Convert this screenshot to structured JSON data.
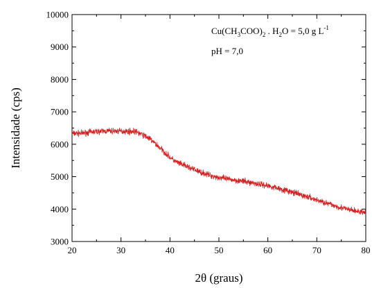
{
  "chart_data": {
    "type": "line",
    "xlabel": "2θ (graus)",
    "ylabel": "Intensidade (cps)",
    "xlim": [
      20,
      80
    ],
    "ylim": [
      3000,
      10000
    ],
    "x_ticks": [
      20,
      30,
      40,
      50,
      60,
      70,
      80
    ],
    "y_ticks": [
      3000,
      4000,
      5000,
      6000,
      7000,
      8000,
      9000,
      10000
    ],
    "grid": false,
    "legend": "none",
    "annotation": {
      "formula_parts": [
        "Cu(CH",
        "3",
        "COO)",
        "2",
        " . H",
        "2",
        "O = 5,0 g L",
        "-1"
      ],
      "ph": "pH = 7,0"
    },
    "series": [
      {
        "color": "#d81e1e",
        "noise_amplitude": 90,
        "x": [
          20,
          22,
          24,
          26,
          28,
          30,
          32,
          33,
          34,
          35,
          36,
          37,
          38,
          39,
          40,
          41,
          42,
          44,
          46,
          48,
          50,
          52,
          54,
          56,
          58,
          60,
          62,
          64,
          66,
          68,
          70,
          72,
          74,
          76,
          78,
          80
        ],
        "values": [
          6330,
          6340,
          6380,
          6400,
          6410,
          6400,
          6400,
          6390,
          6320,
          6250,
          6150,
          6020,
          5880,
          5740,
          5600,
          5480,
          5400,
          5280,
          5150,
          5050,
          4970,
          4920,
          4880,
          4830,
          4780,
          4720,
          4650,
          4560,
          4470,
          4380,
          4280,
          4180,
          4090,
          4000,
          3940,
          3880
        ]
      }
    ]
  }
}
